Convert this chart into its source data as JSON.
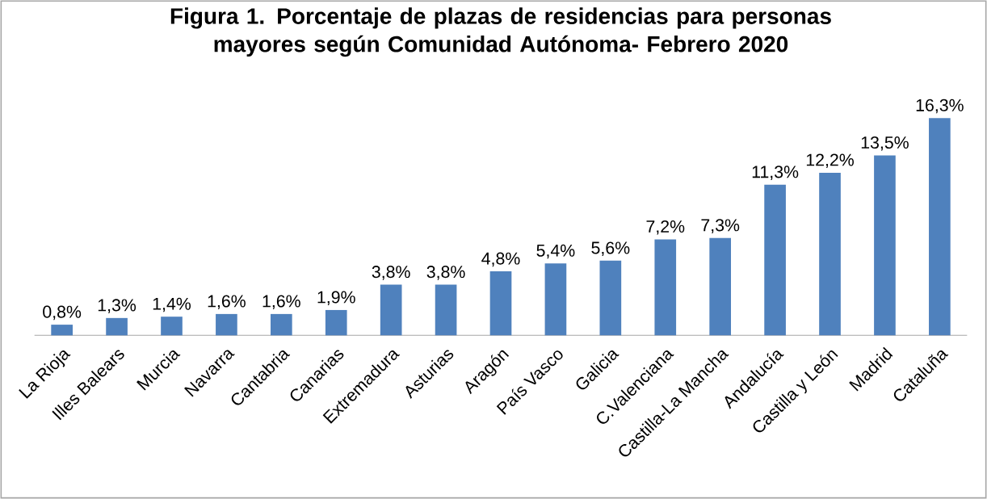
{
  "chart_data": {
    "type": "bar",
    "title": "Figura 1. Porcentaje de plazas de residencias para personas mayores según Comunidad Autónoma- Febrero 2020",
    "categories": [
      "La Rioja",
      "Illes Balears",
      "Murcia",
      "Navarra",
      "Cantabria",
      "Canarias",
      "Extremadura",
      "Asturias",
      "Aragón",
      "País Vasco",
      "Galicia",
      "C.Valenciana",
      "Castilla-La Mancha",
      "Andalucía",
      "Castilla y León",
      "Madrid",
      "Cataluña"
    ],
    "values": [
      0.8,
      1.3,
      1.4,
      1.6,
      1.6,
      1.9,
      3.8,
      3.8,
      4.8,
      5.4,
      5.6,
      7.2,
      7.3,
      11.3,
      12.2,
      13.5,
      16.3
    ],
    "value_labels": [
      "0,8%",
      "1,3%",
      "1,4%",
      "1,6%",
      "1,6%",
      "1,9%",
      "3,8%",
      "3,8%",
      "4,8%",
      "5,4%",
      "5,6%",
      "7,2%",
      "7,3%",
      "11,3%",
      "12,2%",
      "13,5%",
      "16,3%"
    ],
    "color": "#4f81bd"
  }
}
